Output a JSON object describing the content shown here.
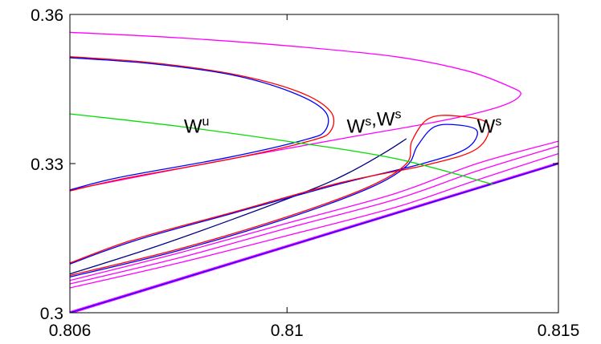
{
  "chart_data": {
    "type": "line",
    "title": "",
    "xlabel": "",
    "ylabel": "",
    "xlim": [
      0.806,
      0.815
    ],
    "ylim": [
      0.3,
      0.36
    ],
    "x_ticks": [
      "0.806",
      "0.81",
      "0.815"
    ],
    "y_ticks": [
      "0.36",
      "0.33",
      "0.3"
    ],
    "grid": false,
    "legend": "none",
    "annotations": [
      {
        "text": "W",
        "sup": "u",
        "x": 0.8081,
        "y": 0.3375
      },
      {
        "text": "W",
        "sup": "s",
        "text2": ",W",
        "sup2": "s",
        "x": 0.8111,
        "y": 0.3375
      },
      {
        "text": "W",
        "sup": "s",
        "x": 0.8135,
        "y": 0.3375
      }
    ],
    "series": [
      {
        "color": "#ff00ff",
        "points": [
          [
            0.806,
            0.3564
          ],
          [
            0.808,
            0.3553
          ],
          [
            0.81,
            0.3537
          ],
          [
            0.812,
            0.3515
          ],
          [
            0.8133,
            0.3487
          ],
          [
            0.8141,
            0.3455
          ],
          [
            0.8143,
            0.3438
          ],
          [
            0.8139,
            0.3414
          ],
          [
            0.8128,
            0.3385
          ],
          [
            0.811,
            0.335
          ],
          [
            0.8085,
            0.33
          ],
          [
            0.806,
            0.3247
          ]
        ]
      },
      {
        "color": "#ff00ff",
        "points": [
          [
            0.806,
            0.3065
          ],
          [
            0.808,
            0.312
          ],
          [
            0.81,
            0.318
          ],
          [
            0.812,
            0.324
          ],
          [
            0.8135,
            0.33
          ],
          [
            0.815,
            0.3345
          ]
        ]
      },
      {
        "color": "#ff00ff",
        "points": [
          [
            0.806,
            0.3058
          ],
          [
            0.808,
            0.311
          ],
          [
            0.81,
            0.317
          ],
          [
            0.812,
            0.3228
          ],
          [
            0.8135,
            0.3285
          ],
          [
            0.815,
            0.3335
          ]
        ]
      },
      {
        "color": "#ff00ff",
        "points": [
          [
            0.806,
            0.305
          ],
          [
            0.808,
            0.31
          ],
          [
            0.81,
            0.3155
          ],
          [
            0.812,
            0.3212
          ],
          [
            0.8135,
            0.3267
          ],
          [
            0.815,
            0.332
          ]
        ]
      },
      {
        "color": "#ff00ff",
        "points": [
          [
            0.806,
            0.3002
          ],
          [
            0.815,
            0.3302
          ]
        ]
      },
      {
        "color": "#ff00ff",
        "points": [
          [
            0.806,
            0.2998
          ],
          [
            0.815,
            0.3299
          ]
        ]
      },
      {
        "color": "#0000ff",
        "points": [
          [
            0.806,
            0.3
          ],
          [
            0.815,
            0.33
          ]
        ]
      },
      {
        "color": "#ff0000",
        "points": [
          [
            0.806,
            0.3515
          ],
          [
            0.8075,
            0.3503
          ],
          [
            0.809,
            0.348
          ],
          [
            0.8102,
            0.3445
          ],
          [
            0.8108,
            0.3405
          ],
          [
            0.8108,
            0.3365
          ],
          [
            0.8104,
            0.3345
          ],
          [
            0.809,
            0.331
          ],
          [
            0.807,
            0.327
          ],
          [
            0.806,
            0.3245
          ]
        ]
      },
      {
        "color": "#0000ff",
        "points": [
          [
            0.806,
            0.3513
          ],
          [
            0.8075,
            0.3501
          ],
          [
            0.809,
            0.3478
          ],
          [
            0.8101,
            0.3443
          ],
          [
            0.8107,
            0.3405
          ],
          [
            0.8107,
            0.3366
          ],
          [
            0.8103,
            0.3347
          ],
          [
            0.8089,
            0.3312
          ],
          [
            0.8069,
            0.3272
          ],
          [
            0.806,
            0.3247
          ]
        ]
      },
      {
        "color": "#000080",
        "points": [
          [
            0.806,
            0.3078
          ],
          [
            0.8075,
            0.313
          ],
          [
            0.809,
            0.3188
          ],
          [
            0.8105,
            0.325
          ],
          [
            0.8112,
            0.3285
          ],
          [
            0.8118,
            0.3322
          ],
          [
            0.8122,
            0.335
          ]
        ]
      },
      {
        "color": "#0000ff",
        "points": [
          [
            0.806,
            0.3072
          ],
          [
            0.808,
            0.3125
          ],
          [
            0.81,
            0.319
          ],
          [
            0.8115,
            0.325
          ],
          [
            0.8122,
            0.3295
          ],
          [
            0.8124,
            0.3335
          ],
          [
            0.8127,
            0.3373
          ],
          [
            0.8131,
            0.3378
          ],
          [
            0.8135,
            0.3366
          ],
          [
            0.8133,
            0.333
          ],
          [
            0.8125,
            0.33
          ],
          [
            0.811,
            0.326
          ],
          [
            0.809,
            0.32
          ],
          [
            0.8072,
            0.3145
          ],
          [
            0.806,
            0.3098
          ]
        ]
      },
      {
        "color": "#ff0000",
        "points": [
          [
            0.806,
            0.3075
          ],
          [
            0.808,
            0.3128
          ],
          [
            0.81,
            0.3193
          ],
          [
            0.8115,
            0.3253
          ],
          [
            0.8122,
            0.33
          ],
          [
            0.8123,
            0.3345
          ],
          [
            0.8126,
            0.339
          ],
          [
            0.8131,
            0.3396
          ],
          [
            0.8137,
            0.338
          ],
          [
            0.8135,
            0.333
          ],
          [
            0.8126,
            0.3298
          ],
          [
            0.811,
            0.3262
          ],
          [
            0.809,
            0.3202
          ],
          [
            0.8072,
            0.3148
          ],
          [
            0.806,
            0.31
          ]
        ]
      },
      {
        "color": "#00dd00",
        "points": [
          [
            0.806,
            0.34
          ],
          [
            0.808,
            0.3375
          ],
          [
            0.81,
            0.3345
          ],
          [
            0.812,
            0.331
          ],
          [
            0.8138,
            0.3258
          ]
        ]
      }
    ]
  }
}
